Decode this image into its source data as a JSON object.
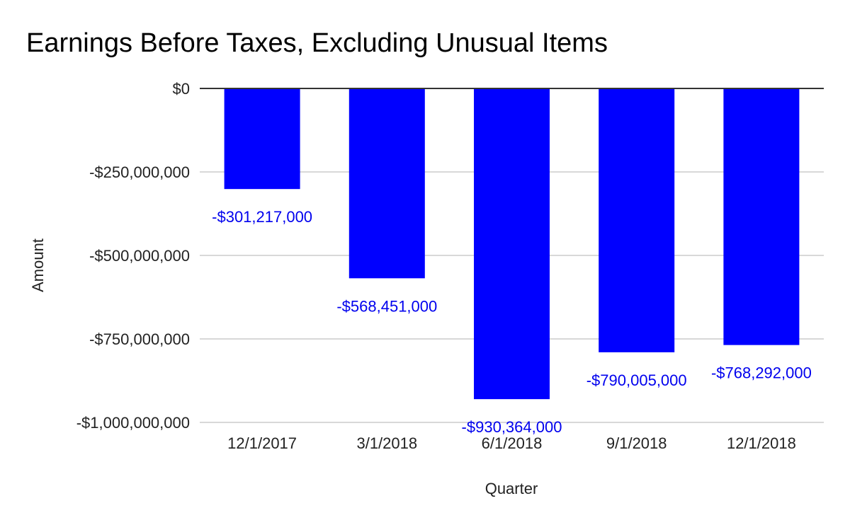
{
  "chart_data": {
    "type": "bar",
    "title": "Earnings Before Taxes, Excluding Unusual Items",
    "xlabel": "Quarter",
    "ylabel": "Amount",
    "categories": [
      "12/1/2017",
      "3/1/2018",
      "6/1/2018",
      "9/1/2018",
      "12/1/2018"
    ],
    "series": [
      {
        "values": [
          -301217000,
          -568451000,
          -930364000,
          -790005000,
          -768292000
        ],
        "data_labels": [
          "-$301,217,000",
          "-$568,451,000",
          "-$930,364,000",
          "-$790,005,000",
          "-$768,292,000"
        ]
      }
    ],
    "ylim": [
      -1000000000,
      0
    ],
    "yticks": [
      0,
      -250000000,
      -500000000,
      -750000000,
      -1000000000
    ],
    "ytick_labels": [
      "$0",
      "-$250,000,000",
      "-$500,000,000",
      "-$750,000,000",
      "-$1,000,000,000"
    ],
    "grid": true,
    "legend": "none",
    "bar_color": "#0000ff",
    "label_color": "#0000ee",
    "gridline_color": "#cccccc",
    "zero_line_color": "#333333"
  }
}
